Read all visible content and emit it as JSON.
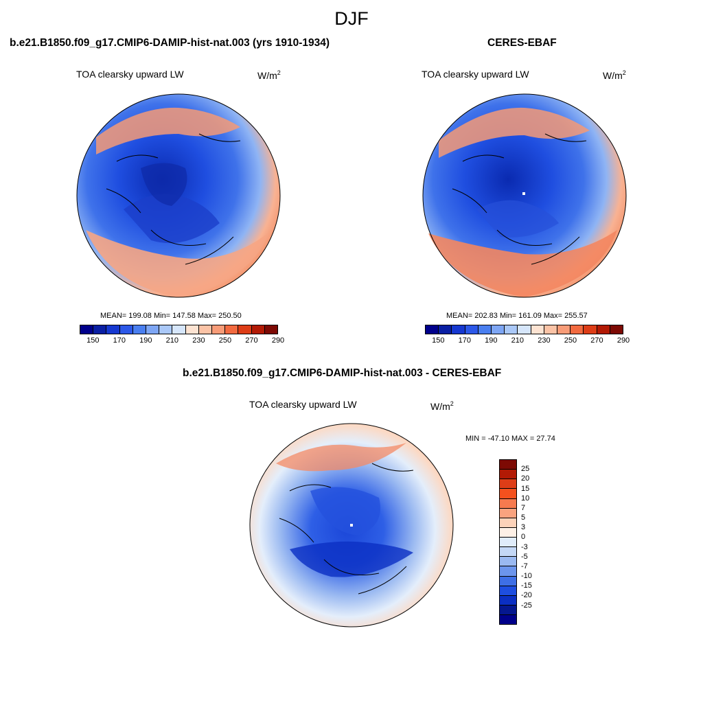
{
  "title": "DJF",
  "panels": {
    "model": {
      "title": "b.e21.B1850.f09_g17.CMIP6-DAMIP-hist-nat.003 (yrs 1910-1934)",
      "field_label": "TOA clearsky upward LW",
      "unit_base": "W/m",
      "unit_exp": "2",
      "stats": "MEAN= 199.08  Min= 147.58  Max= 250.50"
    },
    "obs": {
      "title": "CERES-EBAF",
      "field_label": "TOA clearsky upward LW",
      "unit_base": "W/m",
      "unit_exp": "2",
      "stats": "MEAN= 202.83  Min= 161.09  Max= 255.57"
    },
    "diff": {
      "title": "b.e21.B1850.f09_g17.CMIP6-DAMIP-hist-nat.003 - CERES-EBAF",
      "field_label": "TOA clearsky upward LW",
      "unit_base": "W/m",
      "unit_exp": "2",
      "stats": "MIN = -47.10 MAX =  27.74"
    }
  },
  "abs_colorbar": {
    "colors": [
      "#00008b",
      "#0a1fa3",
      "#1638d0",
      "#2c58e8",
      "#4a7ff0",
      "#7ea6f4",
      "#aac8f8",
      "#d6e6fb",
      "#fde3d2",
      "#fbc3a6",
      "#f89c78",
      "#f26a40",
      "#dd3d17",
      "#b21a05",
      "#7d0a04"
    ],
    "tick_labels": [
      "150",
      "170",
      "190",
      "210",
      "230",
      "250",
      "270",
      "290"
    ]
  },
  "diff_colorbar": {
    "colors": [
      "#7d0a04",
      "#b21a05",
      "#dd3d17",
      "#f4511e",
      "#f67a4f",
      "#f9a37f",
      "#fcd2b9",
      "#fdf0e6",
      "#e0ecfa",
      "#c4d8f6",
      "#9ab9f1",
      "#6c95ec",
      "#3e6fe6",
      "#1e4ee0",
      "#0b2fc3",
      "#05178f",
      "#00008b"
    ],
    "tick_labels": [
      "25",
      "20",
      "15",
      "10",
      "7",
      "5",
      "3",
      "0",
      "-3",
      "-5",
      "-7",
      "-10",
      "-15",
      "-20",
      "-25"
    ]
  }
}
